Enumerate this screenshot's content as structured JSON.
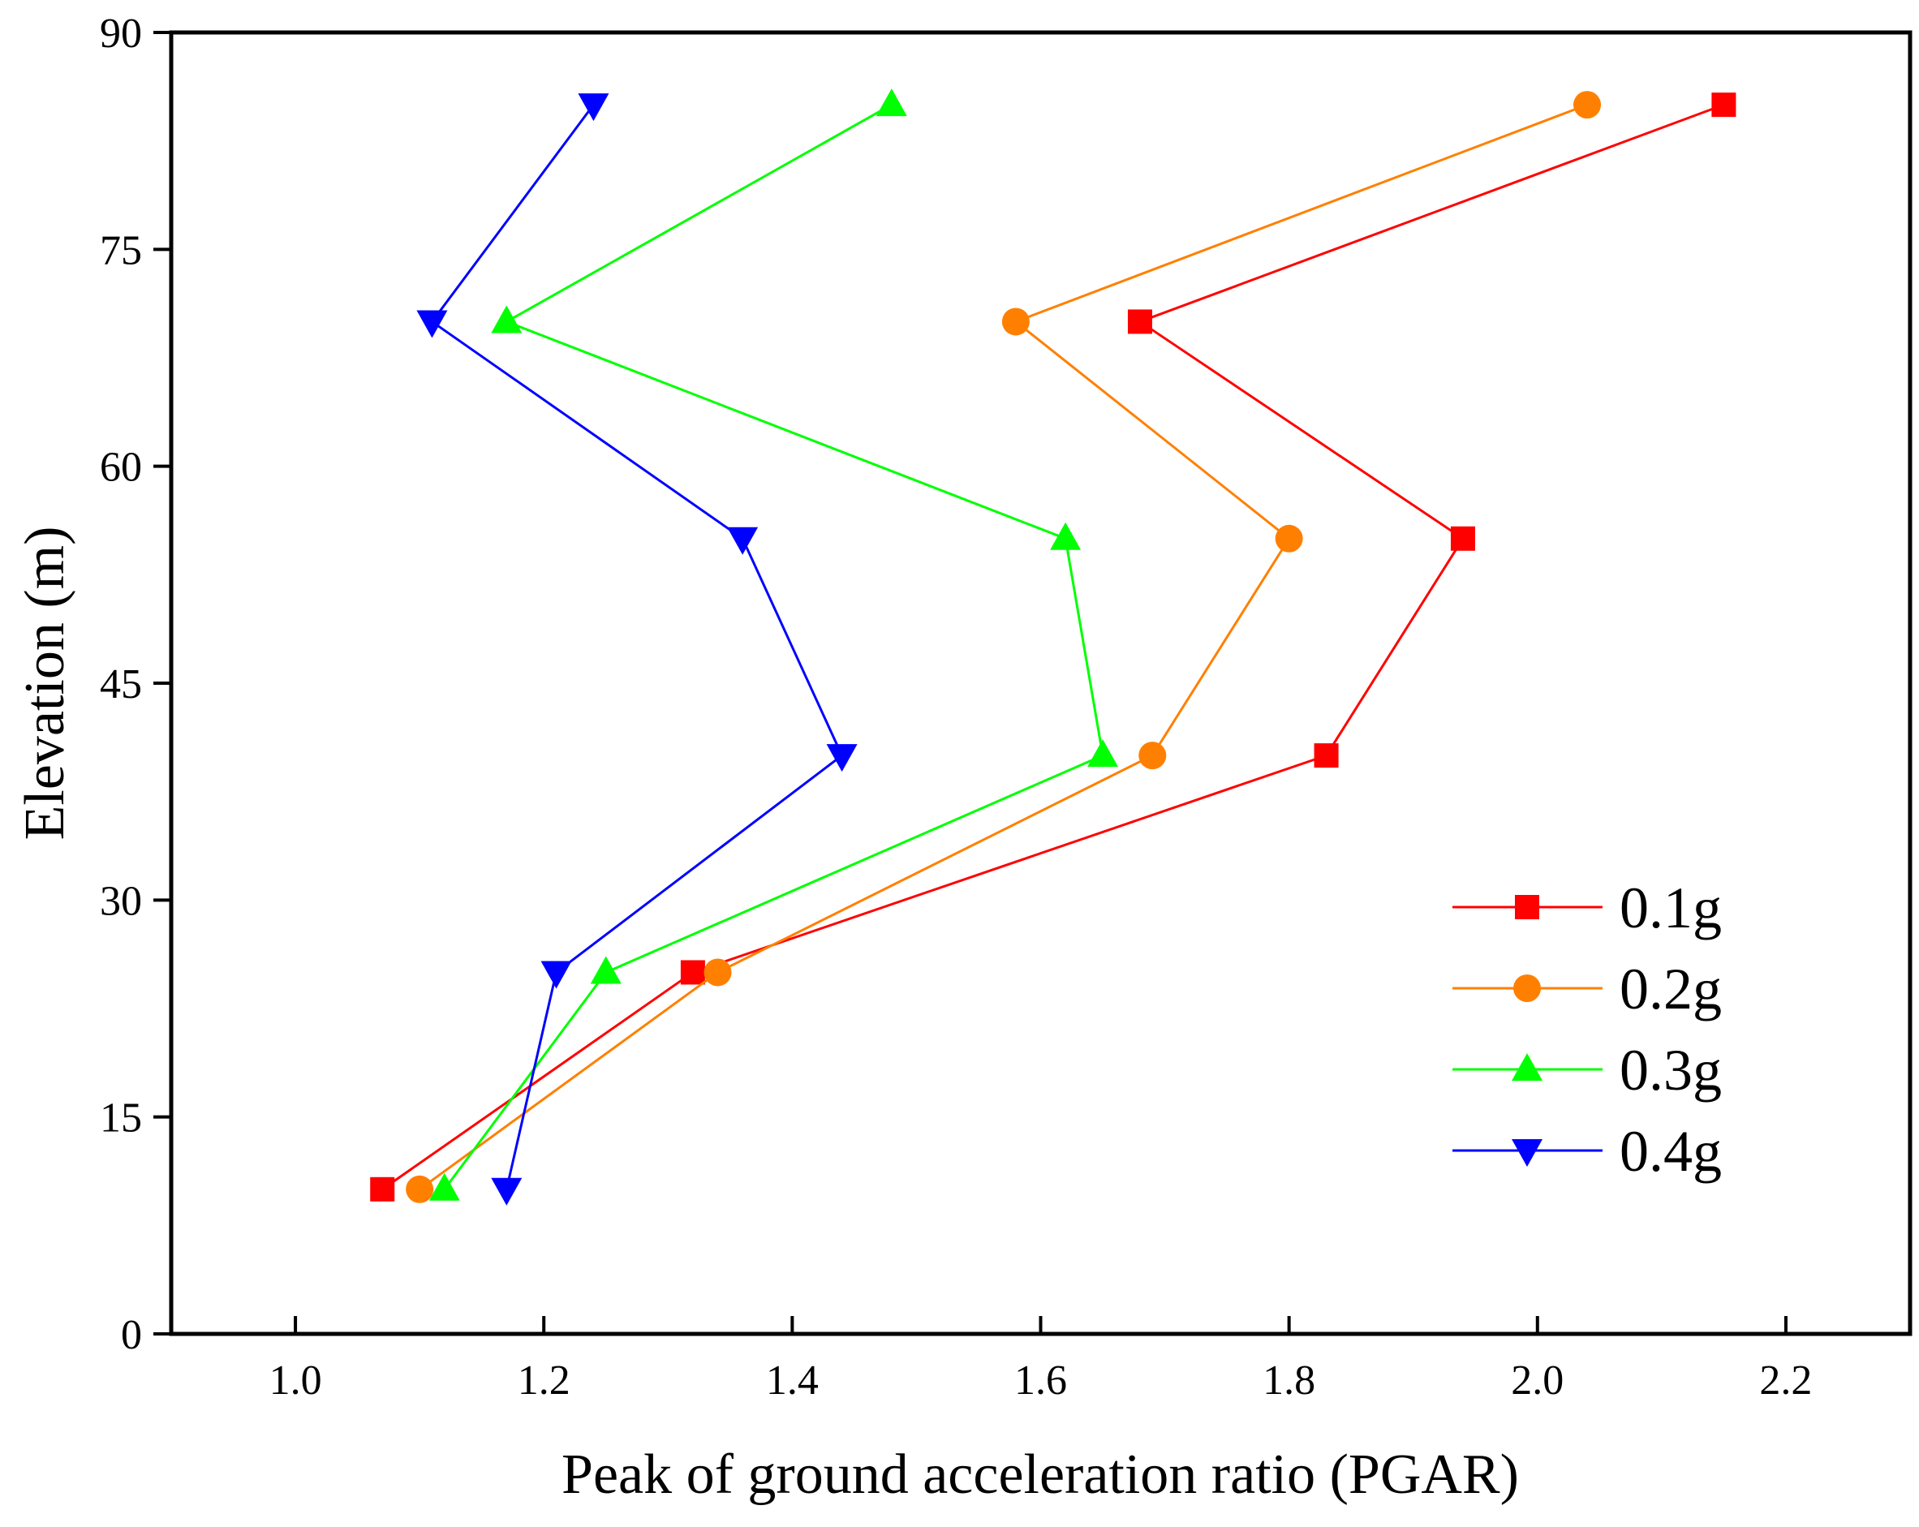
{
  "chart_data": {
    "type": "line",
    "title": "",
    "xlabel": "Peak of ground acceleration ratio (PGAR)",
    "ylabel": "Elevation (m)",
    "xlim": [
      0.9,
      2.3
    ],
    "ylim": [
      0,
      90
    ],
    "xticks": [
      1.0,
      1.2,
      1.4,
      1.6,
      1.8,
      2.0,
      2.2
    ],
    "xtick_labels": [
      "1.0",
      "1.2",
      "1.4",
      "1.6",
      "1.8",
      "2.0",
      "2.2"
    ],
    "yticks": [
      0,
      15,
      30,
      45,
      60,
      75,
      90
    ],
    "ytick_labels": [
      "0",
      "15",
      "30",
      "45",
      "60",
      "75",
      "90"
    ],
    "grid": false,
    "legend_position": "bottom-right",
    "series": [
      {
        "name": "0.1g",
        "color": "#ff0000",
        "marker": "square",
        "points": [
          [
            1.07,
            10
          ],
          [
            1.32,
            25
          ],
          [
            1.83,
            40
          ],
          [
            1.94,
            55
          ],
          [
            1.68,
            70
          ],
          [
            2.15,
            85
          ]
        ]
      },
      {
        "name": "0.2g",
        "color": "#ff8000",
        "marker": "circle",
        "points": [
          [
            1.1,
            10
          ],
          [
            1.34,
            25
          ],
          [
            1.69,
            40
          ],
          [
            1.8,
            55
          ],
          [
            1.58,
            70
          ],
          [
            2.04,
            85
          ]
        ]
      },
      {
        "name": "0.3g",
        "color": "#00ff00",
        "marker": "triangle-up",
        "points": [
          [
            1.12,
            10
          ],
          [
            1.25,
            25
          ],
          [
            1.65,
            40
          ],
          [
            1.62,
            55
          ],
          [
            1.17,
            70
          ],
          [
            1.48,
            85
          ]
        ]
      },
      {
        "name": "0.4g",
        "color": "#0000ff",
        "marker": "triangle-down",
        "points": [
          [
            1.17,
            10
          ],
          [
            1.21,
            25
          ],
          [
            1.44,
            40
          ],
          [
            1.36,
            55
          ],
          [
            1.11,
            70
          ],
          [
            1.24,
            85
          ]
        ]
      }
    ]
  }
}
